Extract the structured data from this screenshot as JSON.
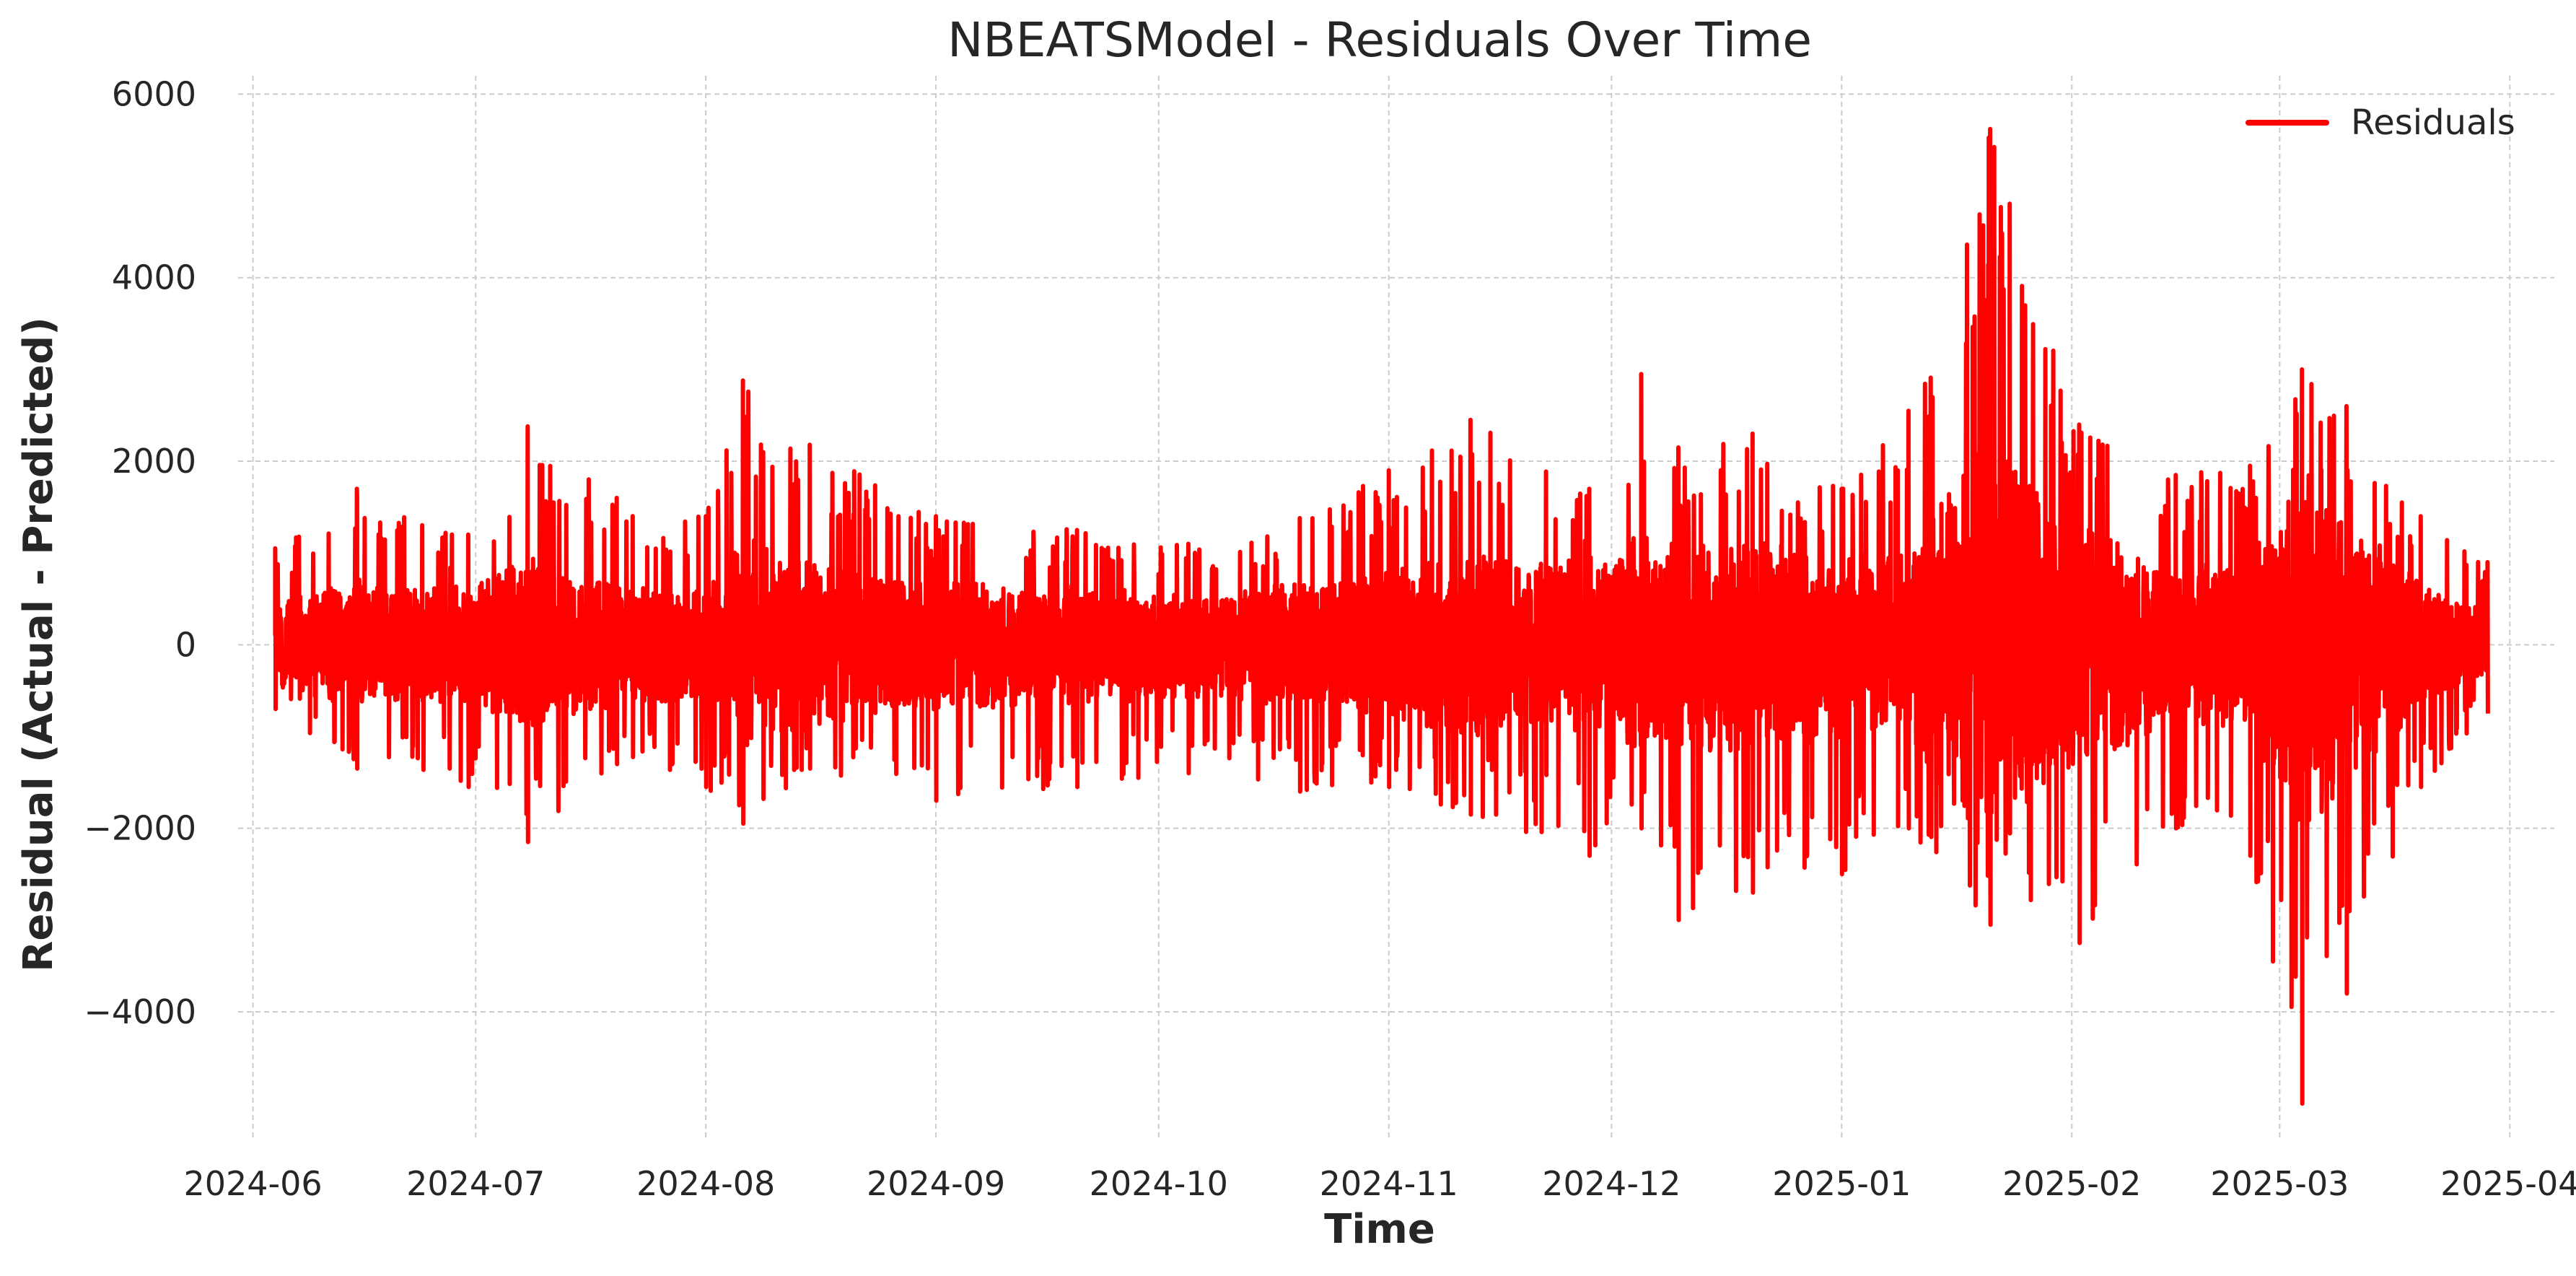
{
  "chart_data": {
    "type": "line",
    "title": "NBEATSModel - Residuals Over Time",
    "xlabel": "Time",
    "ylabel": "Residual (Actual - Predicted)",
    "xlim": [
      "2024-05-30",
      "2025-04-07"
    ],
    "ylim": [
      -5400,
      6200
    ],
    "x_start": "2024-06-04",
    "x_end": "2025-03-29",
    "grid": true,
    "legend": "top-right",
    "x_ticks": [
      "2024-06",
      "2024-07",
      "2024-08",
      "2024-09",
      "2024-10",
      "2024-11",
      "2024-12",
      "2025-01",
      "2025-02",
      "2025-03",
      "2025-04"
    ],
    "y_ticks": [
      {
        "value": 6000,
        "label": "6000"
      },
      {
        "value": 4000,
        "label": "4000"
      },
      {
        "value": 2000,
        "label": "2000"
      },
      {
        "value": 0,
        "label": "0"
      },
      {
        "value": -2000,
        "label": "−2000"
      },
      {
        "value": -4000,
        "label": "−4000"
      }
    ],
    "series": [
      {
        "name": "Residuals",
        "color": "#ff0000",
        "envelope": [
          {
            "date": "2024-06-04",
            "high": 1050,
            "low": -700
          },
          {
            "date": "2024-06-15",
            "high": 1700,
            "low": -1350
          },
          {
            "date": "2024-06-30",
            "high": 1200,
            "low": -1550
          },
          {
            "date": "2024-07-08",
            "high": 2380,
            "low": -2150
          },
          {
            "date": "2024-07-20",
            "high": 1600,
            "low": -1300
          },
          {
            "date": "2024-08-01",
            "high": 1400,
            "low": -1550
          },
          {
            "date": "2024-08-06",
            "high": 2880,
            "low": -1950
          },
          {
            "date": "2024-08-15",
            "high": 2180,
            "low": -1350
          },
          {
            "date": "2024-09-01",
            "high": 1400,
            "low": -1700
          },
          {
            "date": "2024-09-20",
            "high": 1250,
            "low": -1550
          },
          {
            "date": "2024-10-05",
            "high": 1100,
            "low": -1400
          },
          {
            "date": "2024-10-20",
            "high": 1380,
            "low": -1600
          },
          {
            "date": "2024-11-01",
            "high": 1900,
            "low": -1550
          },
          {
            "date": "2024-11-12",
            "high": 2450,
            "low": -1850
          },
          {
            "date": "2024-11-28",
            "high": 1700,
            "low": -2300
          },
          {
            "date": "2024-12-05",
            "high": 2950,
            "low": -2000
          },
          {
            "date": "2024-12-10",
            "high": 2150,
            "low": -3000
          },
          {
            "date": "2024-12-20",
            "high": 2300,
            "low": -2700
          },
          {
            "date": "2025-01-01",
            "high": 1700,
            "low": -2500
          },
          {
            "date": "2025-01-10",
            "high": 2550,
            "low": -2000
          },
          {
            "date": "2025-01-21",
            "high": 5620,
            "low": -3050
          },
          {
            "date": "2025-02-02",
            "high": 2400,
            "low": -3250
          },
          {
            "date": "2025-02-15",
            "high": 1850,
            "low": -2000
          },
          {
            "date": "2025-02-25",
            "high": 1950,
            "low": -2300
          },
          {
            "date": "2025-03-04",
            "high": 3000,
            "low": -5000
          },
          {
            "date": "2025-03-10",
            "high": 2600,
            "low": -3800
          },
          {
            "date": "2025-03-20",
            "high": 1400,
            "low": -1550
          },
          {
            "date": "2025-03-29",
            "high": 900,
            "low": -750
          }
        ]
      }
    ]
  }
}
